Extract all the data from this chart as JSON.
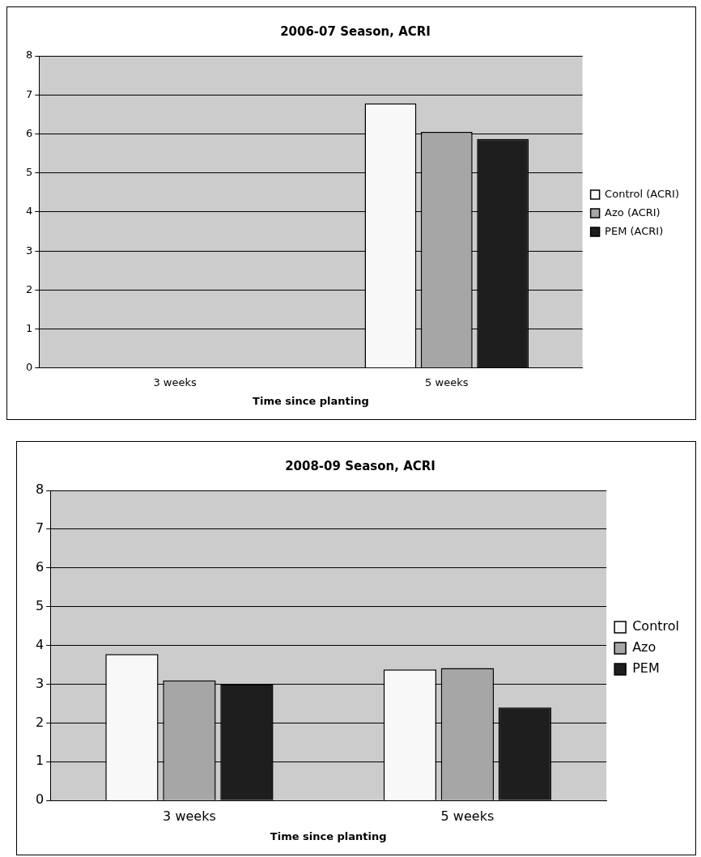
{
  "chart_data": [
    {
      "type": "bar",
      "title": "2006-07 Season, ACRI",
      "xlabel": "Time since planting",
      "categories": [
        "3 weeks",
        "5 weeks"
      ],
      "series": [
        {
          "name": "Control (ACRI)",
          "color": "#f8f8f8",
          "values": [
            null,
            6.78
          ]
        },
        {
          "name": "Azo (ACRI)",
          "color": "#a6a6a6",
          "values": [
            null,
            6.05
          ]
        },
        {
          "name": "PEM (ACRI)",
          "color": "#1e1e1e",
          "values": [
            null,
            5.87
          ]
        }
      ],
      "ylim": [
        0,
        8
      ],
      "yticks": [
        0,
        1,
        2,
        3,
        4,
        5,
        6,
        7,
        8
      ],
      "grid": "y",
      "legend": "right"
    },
    {
      "type": "bar",
      "title": "2008-09 Season, ACRI",
      "xlabel": "Time since planting",
      "categories": [
        "3 weeks",
        "5 weeks"
      ],
      "series": [
        {
          "name": "Control",
          "color": "#f8f8f8",
          "values": [
            3.78,
            3.38
          ]
        },
        {
          "name": "Azo",
          "color": "#a6a6a6",
          "values": [
            3.1,
            3.42
          ]
        },
        {
          "name": "PEM",
          "color": "#1e1e1e",
          "values": [
            3.0,
            2.4
          ]
        }
      ],
      "ylim": [
        0,
        8
      ],
      "yticks": [
        0,
        1,
        2,
        3,
        4,
        5,
        6,
        7,
        8
      ],
      "grid": "y",
      "legend": "right"
    }
  ]
}
